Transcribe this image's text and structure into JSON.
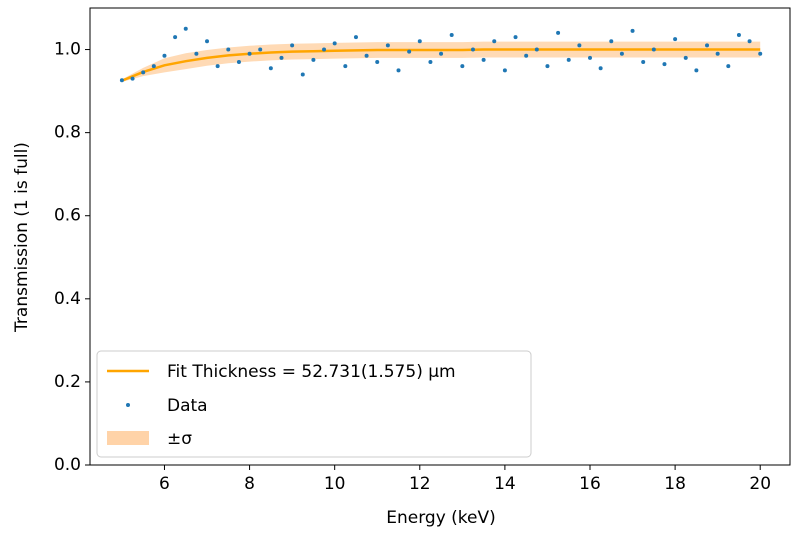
{
  "chart_data": {
    "type": "line",
    "xlabel": "Energy (keV)",
    "ylabel": "Transmission (1 is full)",
    "xlim": [
      4.25,
      20.7
    ],
    "ylim": [
      0,
      1.1
    ],
    "xticks": [
      6,
      8,
      10,
      12,
      14,
      16,
      18,
      20
    ],
    "yticks": [
      {
        "value": 0,
        "label": "0.0"
      },
      {
        "value": 0.2,
        "label": "0.2"
      },
      {
        "value": 0.4,
        "label": "0.4"
      },
      {
        "value": 0.6,
        "label": "0.6"
      },
      {
        "value": 0.8,
        "label": "0.8"
      },
      {
        "value": 1.0,
        "label": "1.0"
      }
    ],
    "legend": "lower left",
    "fit": {
      "name": "Fit Thickness = 52.731(1.575) μm",
      "color": "#ffa500",
      "x": [
        5,
        5.5,
        6,
        6.5,
        7,
        7.5,
        8,
        8.5,
        9,
        9.5,
        10,
        10.5,
        11,
        11.5,
        12,
        12.5,
        13,
        13.5,
        14,
        14.5,
        15,
        15.5,
        16,
        16.5,
        17,
        17.5,
        18,
        18.5,
        19,
        19.5,
        20
      ],
      "values": [
        0.925,
        0.946,
        0.962,
        0.972,
        0.98,
        0.986,
        0.99,
        0.993,
        0.995,
        0.996,
        0.997,
        0.998,
        0.999,
        0.999,
        0.999,
        0.999,
        0.999,
        1.0,
        1.0,
        1.0,
        1.0,
        1.0,
        1.0,
        1.0,
        1.0,
        1.0,
        1.0,
        1.0,
        1.0,
        1.0,
        1.0
      ]
    },
    "band": {
      "name": "±σ",
      "color": "#ffd3a8",
      "lower": [
        0.922,
        0.936,
        0.945,
        0.953,
        0.961,
        0.967,
        0.971,
        0.974,
        0.976,
        0.977,
        0.978,
        0.979,
        0.98,
        0.98,
        0.98,
        0.98,
        0.98,
        0.981,
        0.981,
        0.981,
        0.981,
        0.981,
        0.981,
        0.981,
        0.981,
        0.981,
        0.981,
        0.981,
        0.981,
        0.981,
        0.981
      ],
      "upper": [
        0.928,
        0.956,
        0.979,
        0.991,
        0.999,
        1.005,
        1.009,
        1.012,
        1.014,
        1.015,
        1.016,
        1.017,
        1.018,
        1.018,
        1.018,
        1.018,
        1.018,
        1.019,
        1.019,
        1.019,
        1.019,
        1.019,
        1.019,
        1.019,
        1.019,
        1.019,
        1.019,
        1.019,
        1.019,
        1.019,
        1.019
      ]
    },
    "scatter": {
      "name": "Data",
      "color": "#1f77b4",
      "x": [
        5.0,
        5.25,
        5.5,
        5.75,
        6.0,
        6.25,
        6.5,
        6.75,
        7.0,
        7.25,
        7.5,
        7.75,
        8.0,
        8.25,
        8.5,
        8.75,
        9.0,
        9.25,
        9.5,
        9.75,
        10.0,
        10.25,
        10.5,
        10.75,
        11.0,
        11.25,
        11.5,
        11.75,
        12.0,
        12.25,
        12.5,
        12.75,
        13.0,
        13.25,
        13.5,
        13.75,
        14.0,
        14.25,
        14.5,
        14.75,
        15.0,
        15.25,
        15.5,
        15.75,
        16.0,
        16.25,
        16.5,
        16.75,
        17.0,
        17.25,
        17.5,
        17.75,
        18.0,
        18.25,
        18.5,
        18.75,
        19.0,
        19.25,
        19.5,
        19.75,
        20.0
      ],
      "values": [
        0.926,
        0.93,
        0.945,
        0.96,
        0.985,
        1.03,
        1.05,
        0.99,
        1.02,
        0.96,
        1.0,
        0.97,
        0.99,
        1.0,
        0.955,
        0.98,
        1.01,
        0.94,
        0.975,
        1.0,
        1.015,
        0.96,
        1.03,
        0.985,
        0.97,
        1.01,
        0.95,
        0.995,
        1.02,
        0.97,
        0.99,
        1.035,
        0.96,
        1.0,
        0.975,
        1.02,
        0.95,
        1.03,
        0.985,
        1.0,
        0.96,
        1.04,
        0.975,
        1.01,
        0.98,
        0.955,
        1.02,
        0.99,
        1.045,
        0.97,
        1.0,
        0.965,
        1.025,
        0.98,
        0.95,
        1.01,
        0.99,
        0.96,
        1.035,
        1.02,
        0.99
      ]
    }
  }
}
